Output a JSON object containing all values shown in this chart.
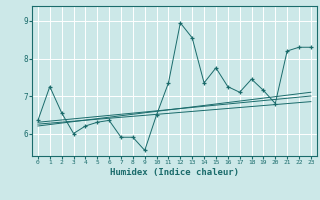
{
  "xlabel": "Humidex (Indice chaleur)",
  "bg_color": "#cce8e8",
  "line_color": "#1a6b6b",
  "xlim": [
    -0.5,
    23.5
  ],
  "ylim": [
    5.4,
    9.4
  ],
  "xticks": [
    0,
    1,
    2,
    3,
    4,
    5,
    6,
    7,
    8,
    9,
    10,
    11,
    12,
    13,
    14,
    15,
    16,
    17,
    18,
    19,
    20,
    21,
    22,
    23
  ],
  "yticks": [
    6,
    7,
    8,
    9
  ],
  "scatter_x": [
    0,
    1,
    2,
    3,
    4,
    5,
    6,
    7,
    8,
    9,
    10,
    11,
    12,
    13,
    14,
    15,
    16,
    17,
    18,
    19,
    20,
    21,
    22,
    23
  ],
  "scatter_y": [
    6.35,
    7.25,
    6.55,
    6.0,
    6.2,
    6.3,
    6.35,
    5.9,
    5.9,
    5.55,
    6.5,
    7.35,
    8.95,
    8.55,
    7.35,
    7.75,
    7.25,
    7.1,
    7.45,
    7.15,
    6.8,
    8.2,
    8.3,
    8.3
  ],
  "trend1_x": [
    0,
    23
  ],
  "trend1_y": [
    6.25,
    6.85
  ],
  "trend2_x": [
    0,
    23
  ],
  "trend2_y": [
    6.3,
    7.0
  ],
  "trend3_x": [
    0,
    23
  ],
  "trend3_y": [
    6.2,
    7.1
  ]
}
